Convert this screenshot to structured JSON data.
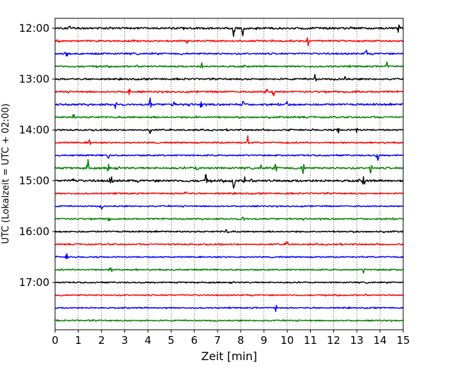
{
  "chart_data": {
    "type": "line",
    "subtype": "helicorder seismogram",
    "xlabel": "Zeit  [min]",
    "ylabel": "UTC (Lokalzeit = UTC + 02:00)",
    "xlim": [
      0,
      15
    ],
    "x_ticks": [
      0,
      1,
      2,
      3,
      4,
      5,
      6,
      7,
      8,
      9,
      10,
      11,
      12,
      13,
      14,
      15
    ],
    "x_tick_labels": [
      "0",
      "1",
      "2",
      "3",
      "4",
      "5",
      "6",
      "7",
      "8",
      "9",
      "10",
      "11",
      "12",
      "13",
      "14",
      "15"
    ],
    "x_grid": "dotted vertical lines at every minute",
    "y_ticks": [
      {
        "row": 0,
        "label": "12:00"
      },
      {
        "row": 4,
        "label": "13:00"
      },
      {
        "row": 8,
        "label": "14:00"
      },
      {
        "row": 12,
        "label": "15:00"
      },
      {
        "row": 16,
        "label": "16:00"
      },
      {
        "row": 20,
        "label": "17:00"
      }
    ],
    "trace_colors": [
      "#000000",
      "#ff0000",
      "#0000ff",
      "#008000"
    ],
    "minutes_per_trace": 15,
    "traces": [
      {
        "start": "12:00",
        "color": "#000000",
        "amplitude": 0.55,
        "events": [
          {
            "t": 0.6,
            "amp": 1.0
          },
          {
            "t": 7.7,
            "amp": 1.8
          },
          {
            "t": 8.1,
            "amp": 1.6
          },
          {
            "t": 14.8,
            "amp": 0.9
          }
        ]
      },
      {
        "start": "12:15",
        "color": "#ff0000",
        "amplitude": 0.45,
        "events": [
          {
            "t": 5.7,
            "amp": 0.8
          },
          {
            "t": 10.9,
            "amp": 0.9
          }
        ]
      },
      {
        "start": "12:30",
        "color": "#0000ff",
        "amplitude": 0.45,
        "events": [
          {
            "t": 0.5,
            "amp": 0.8
          },
          {
            "t": 13.4,
            "amp": 0.8
          }
        ]
      },
      {
        "start": "12:45",
        "color": "#008000",
        "amplitude": 0.45,
        "events": [
          {
            "t": 6.3,
            "amp": 0.7
          },
          {
            "t": 14.3,
            "amp": 0.8
          }
        ]
      },
      {
        "start": "13:00",
        "color": "#000000",
        "amplitude": 0.45,
        "events": [
          {
            "t": 11.2,
            "amp": 0.9
          },
          {
            "t": 12.5,
            "amp": 0.8
          }
        ]
      },
      {
        "start": "13:15",
        "color": "#ff0000",
        "amplitude": 0.45,
        "events": [
          {
            "t": 3.2,
            "amp": 0.9
          },
          {
            "t": 9.1,
            "amp": 1.1
          },
          {
            "t": 9.4,
            "amp": 1.0
          },
          {
            "t": 13.0,
            "amp": 0.9
          }
        ]
      },
      {
        "start": "13:30",
        "color": "#0000ff",
        "amplitude": 0.5,
        "events": [
          {
            "t": 2.6,
            "amp": 0.9
          },
          {
            "t": 4.1,
            "amp": 1.2
          },
          {
            "t": 5.1,
            "amp": 0.9
          },
          {
            "t": 6.3,
            "amp": 0.8
          },
          {
            "t": 8.1,
            "amp": 0.9
          },
          {
            "t": 10.0,
            "amp": 1.0
          }
        ]
      },
      {
        "start": "13:45",
        "color": "#008000",
        "amplitude": 0.45,
        "events": [
          {
            "t": 0.8,
            "amp": 0.9
          },
          {
            "t": 6.1,
            "amp": 0.7
          }
        ]
      },
      {
        "start": "14:00",
        "color": "#000000",
        "amplitude": 0.4,
        "events": [
          {
            "t": 4.1,
            "amp": 0.8
          },
          {
            "t": 12.2,
            "amp": 0.8
          },
          {
            "t": 13.0,
            "amp": 0.8
          }
        ]
      },
      {
        "start": "14:15",
        "color": "#ff0000",
        "amplitude": 0.4,
        "events": [
          {
            "t": 1.5,
            "amp": 0.7
          },
          {
            "t": 8.3,
            "amp": 0.7
          }
        ]
      },
      {
        "start": "14:30",
        "color": "#0000ff",
        "amplitude": 0.4,
        "events": [
          {
            "t": 2.3,
            "amp": 0.8
          },
          {
            "t": 13.9,
            "amp": 1.1
          }
        ]
      },
      {
        "start": "14:45",
        "color": "#008000",
        "amplitude": 0.5,
        "events": [
          {
            "t": 1.4,
            "amp": 2.0
          },
          {
            "t": 2.3,
            "amp": 0.9
          },
          {
            "t": 6.1,
            "amp": 1.0
          },
          {
            "t": 8.9,
            "amp": 1.1
          },
          {
            "t": 9.5,
            "amp": 1.0
          },
          {
            "t": 10.7,
            "amp": 2.0
          },
          {
            "t": 13.6,
            "amp": 1.1
          }
        ]
      },
      {
        "start": "15:00",
        "color": "#000000",
        "amplitude": 0.6,
        "events": [
          {
            "t": 0.8,
            "amp": 1.0
          },
          {
            "t": 2.4,
            "amp": 1.5
          },
          {
            "t": 6.5,
            "amp": 1.6
          },
          {
            "t": 7.7,
            "amp": 2.0
          },
          {
            "t": 8.2,
            "amp": 1.4
          },
          {
            "t": 13.3,
            "amp": 1.2
          }
        ]
      },
      {
        "start": "15:15",
        "color": "#ff0000",
        "amplitude": 0.4,
        "events": [
          {
            "t": 5.6,
            "amp": 0.7
          }
        ]
      },
      {
        "start": "15:30",
        "color": "#0000ff",
        "amplitude": 0.35,
        "events": [
          {
            "t": 2.0,
            "amp": 0.6
          }
        ]
      },
      {
        "start": "15:45",
        "color": "#008000",
        "amplitude": 0.4,
        "events": [
          {
            "t": 2.3,
            "amp": 0.7
          },
          {
            "t": 8.1,
            "amp": 0.7
          }
        ]
      },
      {
        "start": "16:00",
        "color": "#000000",
        "amplitude": 0.4,
        "events": [
          {
            "t": 7.4,
            "amp": 0.8
          }
        ]
      },
      {
        "start": "16:15",
        "color": "#ff0000",
        "amplitude": 0.4,
        "events": [
          {
            "t": 10.0,
            "amp": 1.6
          }
        ]
      },
      {
        "start": "16:30",
        "color": "#0000ff",
        "amplitude": 0.35,
        "events": [
          {
            "t": 0.5,
            "amp": 0.6
          }
        ]
      },
      {
        "start": "16:45",
        "color": "#008000",
        "amplitude": 0.4,
        "events": [
          {
            "t": 2.4,
            "amp": 0.7
          },
          {
            "t": 13.3,
            "amp": 0.7
          }
        ]
      },
      {
        "start": "17:00",
        "color": "#000000",
        "amplitude": 0.35,
        "events": []
      },
      {
        "start": "17:15",
        "color": "#ff0000",
        "amplitude": 0.35,
        "events": []
      },
      {
        "start": "17:30",
        "color": "#0000ff",
        "amplitude": 0.35,
        "events": [
          {
            "t": 9.5,
            "amp": 0.9
          }
        ]
      },
      {
        "start": "17:45",
        "color": "#008000",
        "amplitude": 0.35,
        "events": []
      }
    ]
  }
}
